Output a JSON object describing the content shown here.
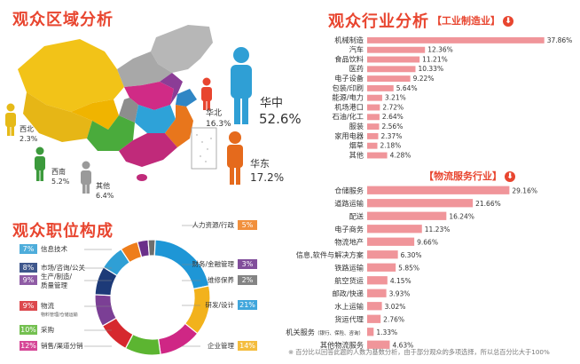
{
  "colors": {
    "accent": "#e8452f",
    "bar": "#f0959a",
    "figure_north_central": "#2f9fd5",
    "figure_east": "#e56a1c",
    "figure_west": "#e6ba18",
    "figure_southwest": "#3c9a3c",
    "figure_other": "#9a9a9a"
  },
  "region": {
    "title": "观众区域分析",
    "labels": [
      {
        "name": "华中",
        "pct": "52.6%"
      },
      {
        "name": "华北",
        "pct": "16.3%"
      },
      {
        "name": "华东",
        "pct": "17.2%"
      },
      {
        "name": "西北",
        "pct": "2.3%"
      },
      {
        "name": "西南",
        "pct": "5.2%"
      },
      {
        "name": "其他",
        "pct": "6.4%"
      }
    ]
  },
  "industry": {
    "title": "观众行业分析",
    "subtitle1": "【工业制造业】",
    "subtitle2": "【物流服务行业】",
    "down_glyph": "⬇"
  },
  "position": {
    "title": "观众职位构成"
  },
  "footnote": "※ 百分比以回答此题的人数为基数分析，由于部分观众的多项选择，所以总百分比大于100%",
  "chart_data": [
    {
      "type": "bar",
      "title": "工业制造业",
      "categories": [
        "机械制造",
        "汽车",
        "食品饮料",
        "医药",
        "电子设备",
        "包装/印刷",
        "能源/电力",
        "机场港口",
        "石油/化工",
        "服装",
        "家用电器",
        "烟草",
        "其他"
      ],
      "values": [
        37.86,
        12.36,
        11.21,
        10.33,
        9.22,
        5.64,
        3.21,
        2.72,
        2.64,
        2.56,
        2.37,
        2.18,
        4.28
      ],
      "value_labels": [
        "37.86%",
        "12.36%",
        "11.21%",
        "10.33%",
        "9.22%",
        "5.64%",
        "3.21%",
        "2.72%",
        "2.64%",
        "2.56%",
        "2.37%",
        "2.18%",
        "4.28%"
      ],
      "orientation": "horizontal",
      "xlim": [
        0,
        40
      ]
    },
    {
      "type": "bar",
      "title": "物流服务行业",
      "categories": [
        "仓储服务",
        "道路运输",
        "配送",
        "电子商务",
        "物流地产",
        "信息,软件与解决方案",
        "铁路运输",
        "航空货运",
        "邮政/快递",
        "水上运输",
        "货运代理",
        "机关服务",
        "其他物流服务"
      ],
      "category_notes": [
        "",
        "",
        "",
        "",
        "",
        "",
        "",
        "",
        "",
        "",
        "",
        "（银行、保险、咨询）",
        ""
      ],
      "values": [
        29.16,
        21.66,
        16.24,
        11.23,
        9.66,
        6.3,
        5.85,
        4.15,
        3.93,
        3.02,
        2.76,
        1.33,
        4.63
      ],
      "value_labels": [
        "29.16%",
        "21.66%",
        "16.24%",
        "11.23%",
        "9.66%",
        "6.30%",
        "5.85%",
        "4.15%",
        "3.93%",
        "3.02%",
        "2.76%",
        "1.33%",
        "4.63%"
      ],
      "orientation": "horizontal",
      "xlim": [
        0,
        32
      ]
    },
    {
      "type": "pie",
      "title": "观众职位构成",
      "donut": true,
      "slices": [
        {
          "label": "信息技术",
          "note": "",
          "value": 7,
          "pct": "7%",
          "color": "#2f9fd5"
        },
        {
          "label": "市场/咨询/公关",
          "note": "",
          "value": 8,
          "pct": "8%",
          "color": "#1d3a78"
        },
        {
          "label": "生产/制造/质量管理",
          "note": "",
          "value": 9,
          "pct": "9%",
          "color": "#7b3f95"
        },
        {
          "label": "物流",
          "note": "物料管理/仓储运输",
          "value": 9,
          "pct": "9%",
          "color": "#d6282e"
        },
        {
          "label": "采购",
          "note": "",
          "value": 10,
          "pct": "10%",
          "color": "#5cb531"
        },
        {
          "label": "销售/渠道分销",
          "note": "",
          "value": 12,
          "pct": "12%",
          "color": "#cf2785"
        },
        {
          "label": "人力资源/行政",
          "note": "",
          "value": 5,
          "pct": "5%",
          "color": "#ee7d1b"
        },
        {
          "label": "财务/金融管理",
          "note": "",
          "value": 3,
          "pct": "3%",
          "color": "#6b2f8a"
        },
        {
          "label": "维修保养",
          "note": "",
          "value": 2,
          "pct": "2%",
          "color": "#6e6e6e"
        },
        {
          "label": "研发/设计",
          "note": "",
          "value": 21,
          "pct": "21%",
          "color": "#1e96d6"
        },
        {
          "label": "企业管理",
          "note": "",
          "value": 14,
          "pct": "14%",
          "color": "#f2b21c"
        }
      ]
    }
  ]
}
